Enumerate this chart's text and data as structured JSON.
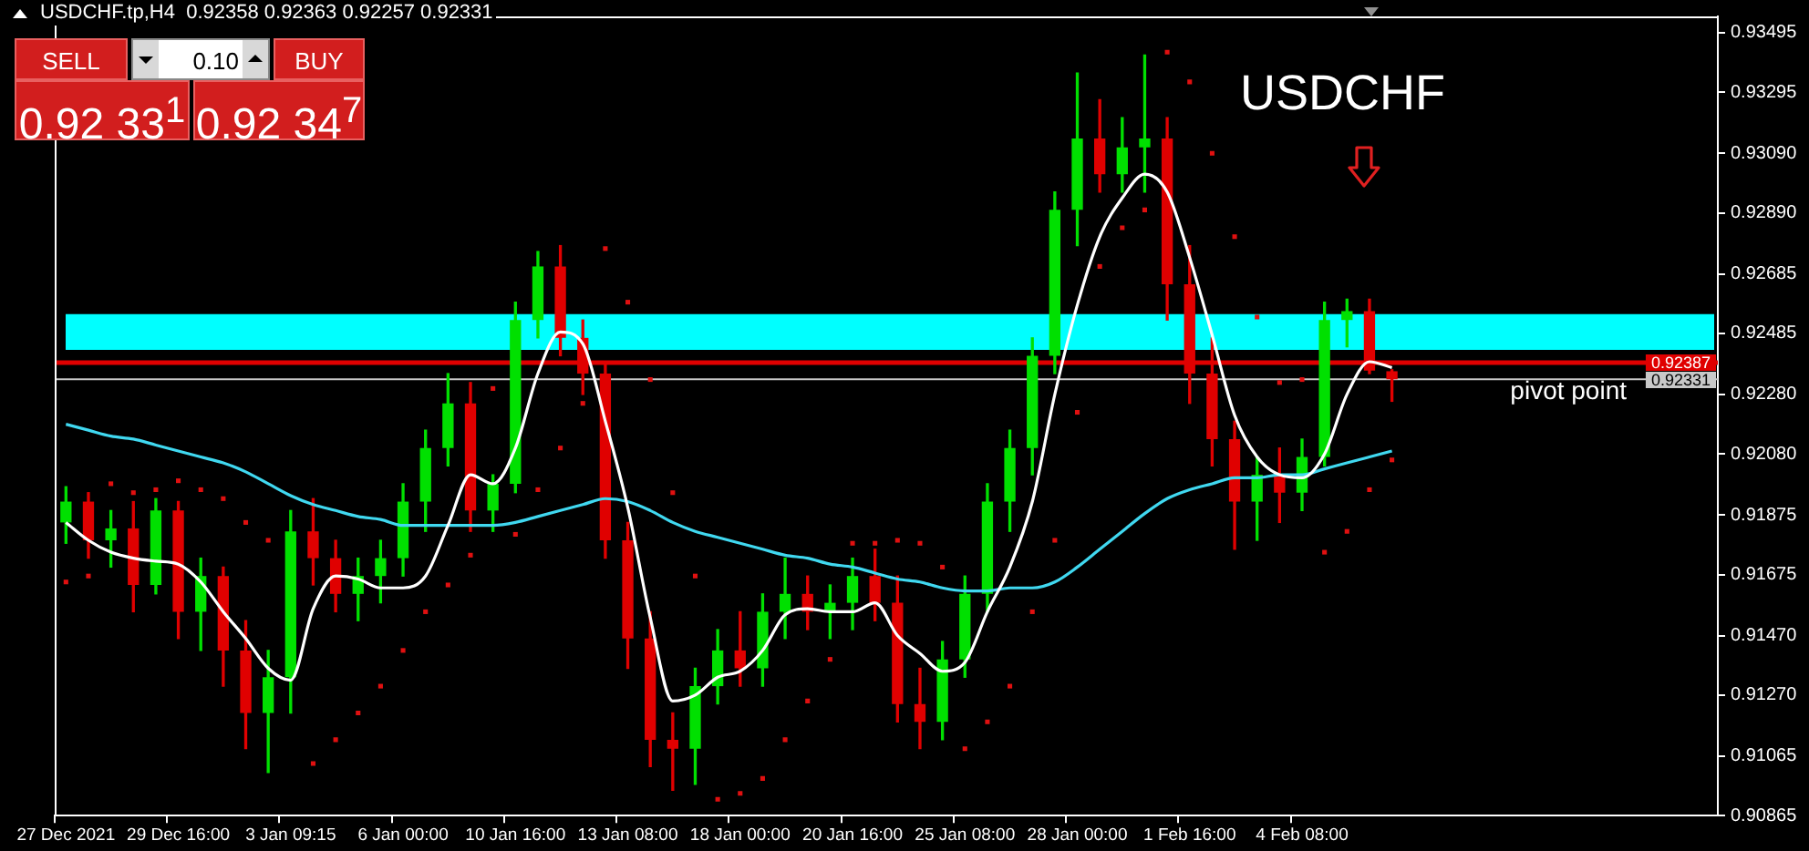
{
  "chart_data": {
    "type": "candlestick",
    "title": "USDCHF",
    "subtitle": "USDCHF.tp,H4  0.92358 0.92363 0.92257 0.92331",
    "categories": [
      "27 Dec 2021",
      null,
      null,
      null,
      null,
      "29 Dec 16:00",
      null,
      null,
      null,
      null,
      "3 Jan 09:15",
      null,
      null,
      null,
      null,
      "6 Jan 00:00",
      null,
      null,
      null,
      null,
      "10 Jan 16:00",
      null,
      null,
      null,
      null,
      "13 Jan 08:00",
      null,
      null,
      null,
      null,
      "18 Jan 00:00",
      null,
      null,
      null,
      null,
      "20 Jan 16:00",
      null,
      null,
      null,
      null,
      "25 Jan 08:00",
      null,
      null,
      null,
      null,
      "28 Jan 00:00",
      null,
      null,
      null,
      null,
      "1 Feb 16:00",
      null,
      null,
      null,
      null,
      "4 Feb 08:00",
      null,
      null,
      null,
      null,
      null,
      null,
      null,
      null,
      null,
      null,
      null,
      null,
      null,
      null,
      null,
      null,
      null,
      null
    ],
    "ohlc": [
      [
        0.9185,
        0.9197,
        0.9178,
        0.9192
      ],
      [
        0.9192,
        0.9195,
        0.9173,
        0.9179
      ],
      [
        0.9179,
        0.9189,
        0.917,
        0.9183
      ],
      [
        0.9183,
        0.9192,
        0.9155,
        0.9164
      ],
      [
        0.9164,
        0.9193,
        0.9161,
        0.9189
      ],
      [
        0.9189,
        0.9192,
        0.9146,
        0.9155
      ],
      [
        0.9155,
        0.9173,
        0.9142,
        0.9167
      ],
      [
        0.9167,
        0.917,
        0.913,
        0.9142
      ],
      [
        0.9142,
        0.9152,
        0.9109,
        0.9121
      ],
      [
        0.9121,
        0.9142,
        0.9101,
        0.9133
      ],
      [
        0.9133,
        0.9189,
        0.9121,
        0.9182
      ],
      [
        0.9182,
        0.9193,
        0.9164,
        0.9173
      ],
      [
        0.9173,
        0.9179,
        0.9155,
        0.9161
      ],
      [
        0.9161,
        0.9173,
        0.9152,
        0.9167
      ],
      [
        0.9167,
        0.9179,
        0.9158,
        0.9173
      ],
      [
        0.9173,
        0.9198,
        0.9167,
        0.9192
      ],
      [
        0.9192,
        0.9216,
        0.9182,
        0.921
      ],
      [
        0.921,
        0.9235,
        0.9204,
        0.9225
      ],
      [
        0.9225,
        0.9232,
        0.9182,
        0.9189
      ],
      [
        0.9189,
        0.9201,
        0.9182,
        0.9198
      ],
      [
        0.9198,
        0.9259,
        0.9195,
        0.9253
      ],
      [
        0.9253,
        0.9276,
        0.9247,
        0.9271
      ],
      [
        0.9271,
        0.9278,
        0.9241,
        0.9247
      ],
      [
        0.9247,
        0.9253,
        0.9228,
        0.9235
      ],
      [
        0.9235,
        0.9238,
        0.9173,
        0.9179
      ],
      [
        0.9179,
        0.9185,
        0.9136,
        0.9146
      ],
      [
        0.9146,
        0.9155,
        0.9103,
        0.9112
      ],
      [
        0.9112,
        0.9121,
        0.9095,
        0.9109
      ],
      [
        0.9109,
        0.9136,
        0.9097,
        0.913
      ],
      [
        0.913,
        0.9149,
        0.9124,
        0.9142
      ],
      [
        0.9142,
        0.9155,
        0.913,
        0.9136
      ],
      [
        0.9136,
        0.9161,
        0.913,
        0.9155
      ],
      [
        0.9155,
        0.9173,
        0.9146,
        0.9161
      ],
      [
        0.9161,
        0.9167,
        0.9149,
        0.9155
      ],
      [
        0.9155,
        0.9164,
        0.9146,
        0.9158
      ],
      [
        0.9158,
        0.9173,
        0.9149,
        0.9167
      ],
      [
        0.9167,
        0.9176,
        0.9152,
        0.9158
      ],
      [
        0.9158,
        0.9167,
        0.9118,
        0.9124
      ],
      [
        0.9124,
        0.9136,
        0.9109,
        0.9118
      ],
      [
        0.9118,
        0.9145,
        0.9112,
        0.9139
      ],
      [
        0.9139,
        0.9167,
        0.9133,
        0.9161
      ],
      [
        0.9161,
        0.9198,
        0.9155,
        0.9192
      ],
      [
        0.9192,
        0.9216,
        0.9182,
        0.921
      ],
      [
        0.921,
        0.9247,
        0.9201,
        0.9241
      ],
      [
        0.9241,
        0.9296,
        0.9235,
        0.929
      ],
      [
        0.929,
        0.9336,
        0.9278,
        0.9314
      ],
      [
        0.9314,
        0.9327,
        0.9296,
        0.9302
      ],
      [
        0.9302,
        0.9321,
        0.9296,
        0.9311
      ],
      [
        0.9311,
        0.9342,
        0.9296,
        0.9314
      ],
      [
        0.9314,
        0.9321,
        0.9253,
        0.9265
      ],
      [
        0.9265,
        0.9278,
        0.9225,
        0.9235
      ],
      [
        0.9235,
        0.9247,
        0.9204,
        0.9213
      ],
      [
        0.9213,
        0.9219,
        0.9176,
        0.9192
      ],
      [
        0.9192,
        0.9207,
        0.9179,
        0.9201
      ],
      [
        0.9201,
        0.921,
        0.9185,
        0.9195
      ],
      [
        0.9195,
        0.9213,
        0.9189,
        0.9207
      ],
      [
        0.9207,
        0.9259,
        0.9204,
        0.9253
      ],
      [
        0.9253,
        0.926,
        0.9244,
        0.9256
      ],
      [
        0.9256,
        0.926,
        0.9235,
        0.9236
      ],
      [
        0.92358,
        0.92363,
        0.92257,
        0.92331
      ],
      null,
      null,
      null,
      null,
      null,
      null,
      null,
      null,
      null,
      null,
      null,
      null,
      null,
      null
    ],
    "colors": [
      "#00e000",
      "#e00000",
      "#00e000",
      "#e00000",
      "#00e000",
      "#e00000",
      "#00e000",
      "#e00000",
      "#e00000",
      "#00e000",
      "#00e000",
      "#e00000",
      "#e00000",
      "#00e000",
      "#00e000",
      "#00e000",
      "#00e000",
      "#00e000",
      "#e00000",
      "#00e000",
      "#00e000",
      "#00e000",
      "#e00000",
      "#e00000",
      "#e00000",
      "#e00000",
      "#e00000",
      "#e00000",
      "#00e000",
      "#00e000",
      "#e00000",
      "#00e000",
      "#00e000",
      "#e00000",
      "#00e000",
      "#00e000",
      "#e00000",
      "#e00000",
      "#e00000",
      "#00e000",
      "#00e000",
      "#00e000",
      "#00e000",
      "#00e000",
      "#00e000",
      "#00e000",
      "#e00000",
      "#00e000",
      "#00e000",
      "#e00000",
      "#e00000",
      "#e00000",
      "#e00000",
      "#00e000",
      "#e00000",
      "#00e000",
      "#00e000",
      "#00e000",
      "#e00000",
      "#e00000",
      null,
      null,
      null,
      null,
      null,
      null,
      null,
      null,
      null,
      null,
      null,
      null,
      null,
      null
    ],
    "series": [
      {
        "type": "line",
        "color": "#ffffff",
        "values": [
          0.9185,
          0.9179,
          0.9175,
          0.9173,
          0.9172,
          0.9171,
          0.9165,
          0.9155,
          0.9146,
          0.9136,
          0.9132,
          0.9156,
          0.9167,
          0.9166,
          0.9163,
          0.9163,
          0.9167,
          0.9184,
          0.9201,
          0.9198,
          0.921,
          0.9235,
          0.9249,
          0.9245,
          0.9219,
          0.919,
          0.9153,
          0.9125,
          0.9127,
          0.9133,
          0.9135,
          0.9142,
          0.9154,
          0.9156,
          0.9155,
          0.9155,
          0.9158,
          0.9147,
          0.9141,
          0.9135,
          0.9138,
          0.9155,
          0.917,
          0.9192,
          0.9228,
          0.9258,
          0.9281,
          0.9294,
          0.9302,
          0.9296,
          0.9274,
          0.9248,
          0.9221,
          0.9207,
          0.9201,
          0.92,
          0.9208,
          0.9228,
          0.9239,
          0.9237,
          null,
          null,
          null,
          null,
          null,
          null,
          null,
          null,
          null,
          null,
          null,
          null,
          null,
          null
        ]
      },
      {
        "type": "line",
        "color": "#40d8f0",
        "values": [
          0.9218,
          0.9216,
          0.9214,
          0.9213,
          0.9211,
          0.9209,
          0.9207,
          0.9205,
          0.9202,
          0.9198,
          0.9194,
          0.9191,
          0.9189,
          0.9187,
          0.9186,
          0.9184,
          0.9184,
          0.9184,
          0.9184,
          0.9184,
          0.9185,
          0.9187,
          0.9189,
          0.9191,
          0.9193,
          0.9192,
          0.9189,
          0.9185,
          0.9182,
          0.918,
          0.9178,
          0.9176,
          0.9174,
          0.9173,
          0.9171,
          0.917,
          0.9168,
          0.9166,
          0.9165,
          0.9163,
          0.9162,
          0.9162,
          0.9163,
          0.9163,
          0.9165,
          0.917,
          0.9176,
          0.9182,
          0.9188,
          0.9193,
          0.9196,
          0.9198,
          0.92,
          0.92,
          0.9201,
          0.9201,
          0.9203,
          0.9205,
          0.9207,
          0.9209,
          null,
          null,
          null,
          null,
          null,
          null,
          null,
          null,
          null,
          null,
          null,
          null,
          null,
          null
        ]
      },
      {
        "type": "scatter",
        "color": "#e01010",
        "marker": "square",
        "values": [
          0.9165,
          0.9167,
          0.9198,
          0.9195,
          0.9196,
          0.9199,
          0.9196,
          0.9193,
          0.9185,
          0.9179,
          null,
          0.9104,
          0.9112,
          0.9121,
          0.913,
          0.9142,
          0.9155,
          0.9164,
          0.9174,
          0.923,
          0.9181,
          0.9196,
          0.921,
          0.9225,
          0.9277,
          0.9259,
          0.9233,
          0.9195,
          0.9167,
          0.9092,
          0.9094,
          0.9099,
          0.9112,
          0.9125,
          0.9139,
          0.9178,
          0.9178,
          0.9179,
          0.9178,
          0.917,
          0.9109,
          0.9118,
          0.913,
          0.9155,
          0.9179,
          0.9222,
          0.9271,
          0.9284,
          0.929,
          0.9343,
          0.9333,
          0.9309,
          0.9281,
          0.9254,
          0.9232,
          0.9233,
          0.9175,
          0.9182,
          0.9196,
          0.9206,
          null,
          null,
          null,
          null,
          null,
          null,
          null,
          null,
          null,
          null,
          null,
          null,
          null,
          null
        ]
      }
    ],
    "ylim": [
      0.90865,
      0.9355
    ],
    "yticks": [
      0.90865,
      0.91065,
      {
        "value": 0.9127,
        "label": "0.91270"
      },
      {
        "value": 0.9147,
        "label": "0.91470"
      },
      0.91675,
      0.91875,
      {
        "value": 0.9208,
        "label": "0.92080"
      },
      {
        "value": 0.9228,
        "label": "0.92280"
      },
      0.92485,
      0.92685,
      {
        "value": 0.9289,
        "label": "0.92890"
      },
      {
        "value": 0.9309,
        "label": "0.93090"
      },
      0.93295,
      0.93495
    ],
    "bands": [
      {
        "axis": "y",
        "from": 0.9243,
        "to": 0.9255,
        "color": "#00ffff"
      }
    ],
    "ref_lines": [
      {
        "axis": "y",
        "value": 0.92387,
        "label": "0.92387",
        "color": "#e00000"
      },
      {
        "axis": "y",
        "value": 0.92331,
        "label": "0.92331",
        "color": "#c8c8c8"
      }
    ],
    "annotations": [
      "pivot point",
      "SELL",
      "0.10",
      "BUY",
      "0.92 33$^{1}$",
      "0.92 34$^{7}$"
    ],
    "grid": false,
    "legend": false
  }
}
